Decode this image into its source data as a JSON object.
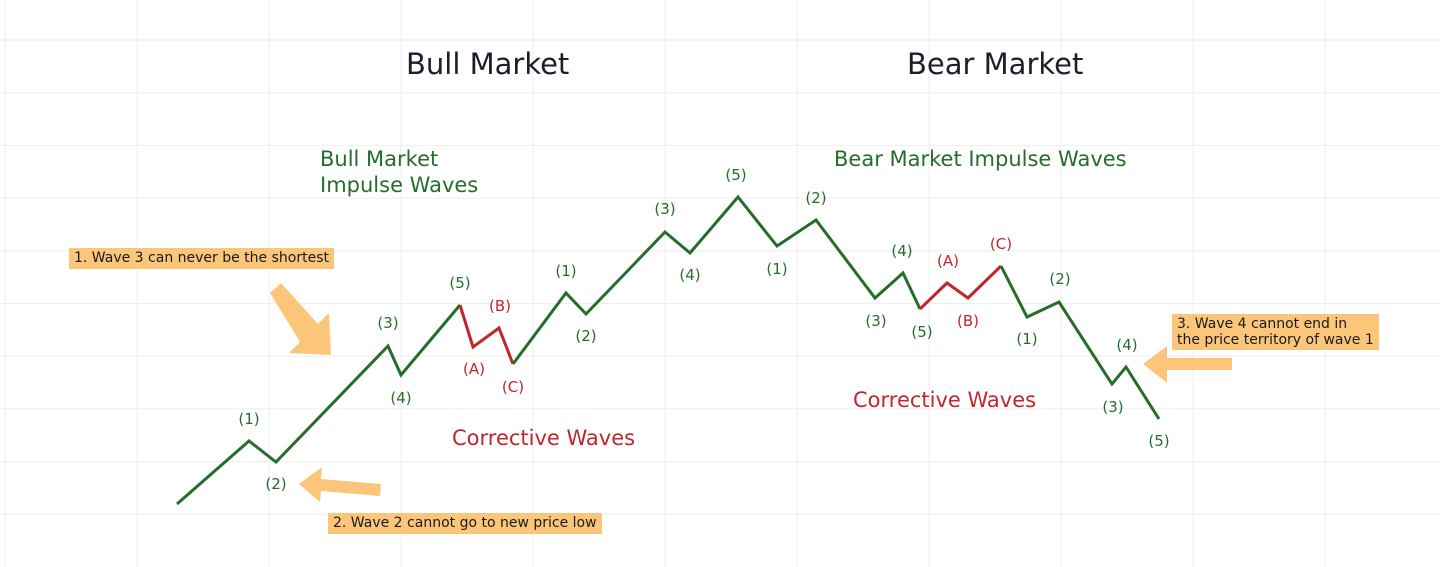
{
  "titles": {
    "bull": "Bull Market",
    "bear": "Bear Market"
  },
  "headings": {
    "bull_impulse_line1": "Bull Market",
    "bull_impulse_line2": "Impulse Waves",
    "bear_impulse": "Bear Market Impulse Waves",
    "bull_corrective": "Corrective Waves",
    "bear_corrective": "Corrective Waves"
  },
  "notes": {
    "rule1": "1. Wave 3 can never be the shortest",
    "rule2": "2. Wave 2 cannot go to new price low",
    "rule3_line1": "3. Wave 4 cannot end in",
    "rule3_line2": "the price territory of wave 1"
  },
  "wave_labels": {
    "bull_impulse": [
      "(1)",
      "(2)",
      "(3)",
      "(4)",
      "(5)"
    ],
    "bull_corrective": [
      "(A)",
      "(B)",
      "(C)"
    ],
    "bull_next": [
      "(1)",
      "(2)",
      "(3)",
      "(4)",
      "(5)"
    ],
    "bear_impulse": [
      "(1)",
      "(2)",
      "(3)",
      "(4)",
      "(5)"
    ],
    "bear_corrective": [
      "(A)",
      "(B)",
      "(C)"
    ],
    "bear_next": [
      "(1)",
      "(2)",
      "(3)",
      "(4)",
      "(5)"
    ]
  },
  "colors": {
    "impulse": "#256d2b",
    "corrective": "#c0262d",
    "note_bg": "#fcc67a",
    "arrow": "#fcc67a",
    "grid": "#eeeeee"
  }
}
